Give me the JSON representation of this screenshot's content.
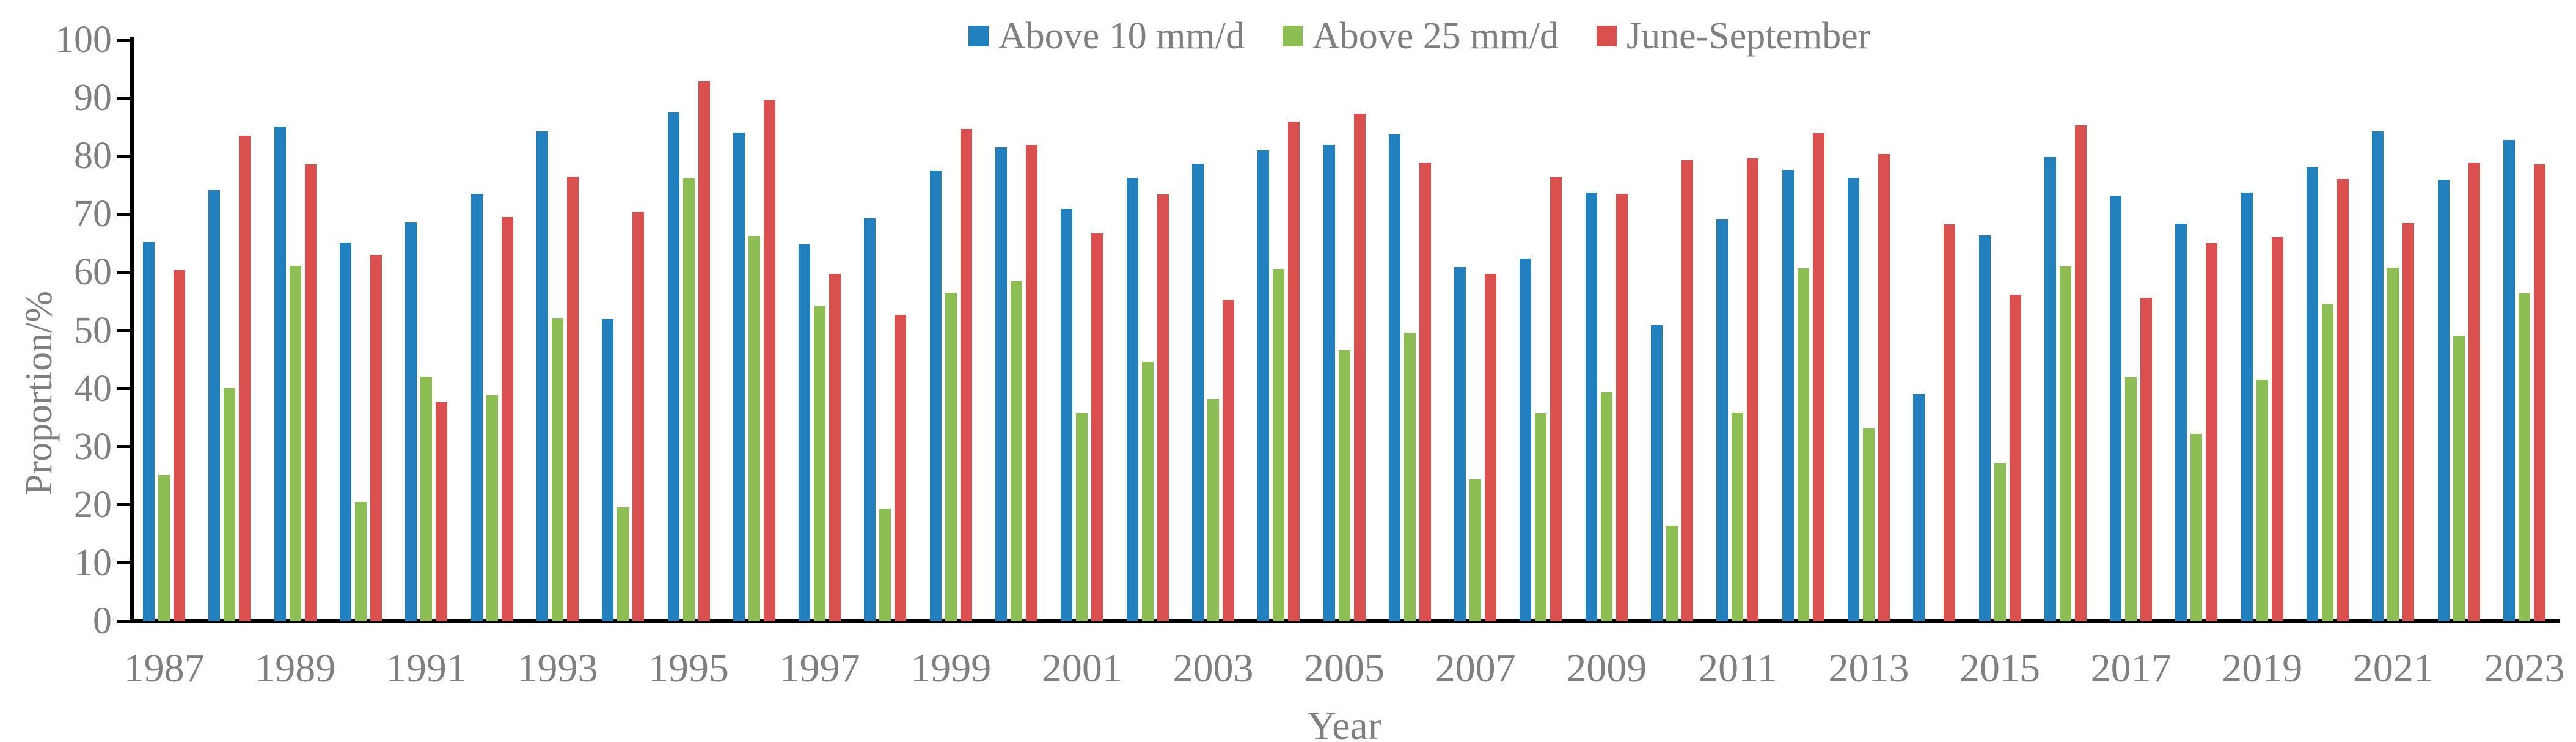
{
  "page": {
    "background": "#ffffff",
    "text_color": "#7f7f7f",
    "axis_color": "#000000"
  },
  "legend": {
    "position": "top",
    "items": [
      {
        "label": "Above 10 mm/d",
        "color": "#2380BF"
      },
      {
        "label": "Above 25 mm/d",
        "color": "#8CBE53"
      },
      {
        "label": "June-September",
        "color": "#DA504E"
      }
    ]
  },
  "chart_data": {
    "type": "bar",
    "title": "",
    "xlabel": "Year",
    "ylabel": "Proportion/%",
    "ylim": [
      0,
      100
    ],
    "yticks": [
      0,
      10,
      20,
      30,
      40,
      50,
      60,
      70,
      80,
      90,
      100
    ],
    "grid": false,
    "legend_position": "top",
    "categories": [
      1987,
      1988,
      1989,
      1990,
      1991,
      1992,
      1993,
      1994,
      1995,
      1996,
      1997,
      1998,
      1999,
      2000,
      2001,
      2002,
      2003,
      2004,
      2005,
      2006,
      2007,
      2008,
      2009,
      2010,
      2011,
      2012,
      2013,
      2014,
      2015,
      2016,
      2017,
      2018,
      2019,
      2020,
      2021,
      2022,
      2023
    ],
    "x_tick_labels": [
      "1987",
      "1989",
      "1991",
      "1993",
      "1995",
      "1997",
      "1999",
      "2001",
      "2003",
      "2005",
      "2007",
      "2009",
      "2011",
      "2013",
      "2015",
      "2017",
      "2019",
      "2021",
      "2023"
    ],
    "series": [
      {
        "name": "Above 10 mm/d",
        "color": "#2380BF",
        "values": [
          65.2,
          74.1,
          85.1,
          65.1,
          68.6,
          73.5,
          84.2,
          51.9,
          87.5,
          84.0,
          64.8,
          69.3,
          77.5,
          81.5,
          70.9,
          76.2,
          78.7,
          81.0,
          81.9,
          83.7,
          60.9,
          62.4,
          73.7,
          50.9,
          69.1,
          77.6,
          76.2,
          39.0,
          66.3,
          79.8,
          73.2,
          68.3,
          73.7,
          78.0,
          84.2,
          75.9,
          82.8
        ]
      },
      {
        "name": "Above 25 mm/d",
        "color": "#8CBE53",
        "values": [
          25.1,
          40.1,
          61.1,
          20.5,
          42.1,
          38.8,
          52.1,
          19.6,
          76.1,
          66.2,
          54.2,
          19.4,
          56.5,
          58.5,
          35.8,
          44.6,
          38.2,
          60.6,
          46.6,
          49.5,
          24.4,
          35.8,
          39.3,
          16.4,
          35.9,
          60.7,
          33.1,
          0,
          27.1,
          61.0,
          42.0,
          32.2,
          41.5,
          54.6,
          60.8,
          49.0,
          56.4
        ]
      },
      {
        "name": "June-September",
        "color": "#DA504E",
        "values": [
          60.4,
          83.5,
          78.6,
          63.0,
          37.6,
          69.5,
          76.4,
          70.3,
          92.9,
          89.6,
          59.7,
          52.7,
          84.7,
          81.9,
          66.7,
          73.4,
          55.2,
          85.9,
          87.3,
          78.9,
          59.7,
          76.3,
          73.5,
          79.3,
          79.6,
          83.9,
          80.3,
          68.2,
          56.2,
          85.3,
          55.6,
          65.0,
          66.0,
          76.0,
          68.5,
          78.9,
          78.6
        ]
      }
    ]
  }
}
